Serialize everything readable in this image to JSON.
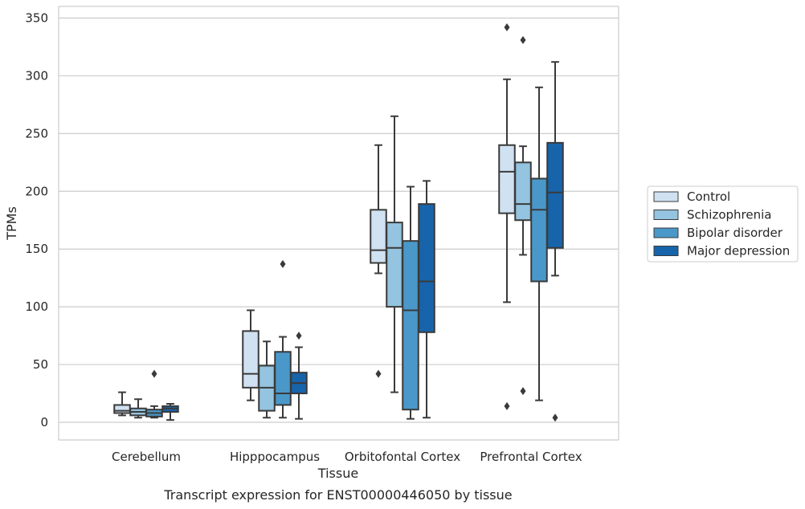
{
  "caption": "Transcript expression for ENST00000446050 by tissue",
  "chart_data": {
    "type": "box",
    "title": "",
    "xlabel": "Tissue",
    "ylabel": "TPMs",
    "ylim": [
      -15,
      360
    ],
    "yticks": [
      0,
      50,
      100,
      150,
      200,
      250,
      300,
      350
    ],
    "grid": "horizontal",
    "legend_position": "right",
    "categories": [
      "Cerebellum",
      "Hipppocampus",
      "Orbitofontal Cortex",
      "Prefrontal Cortex"
    ],
    "series": [
      {
        "name": "Control",
        "color": "#d0e1f2",
        "boxes": [
          {
            "whislo": 6,
            "q1": 8,
            "med": 10,
            "q3": 15,
            "whishi": 26,
            "fliers": []
          },
          {
            "whislo": 19,
            "q1": 30,
            "med": 42,
            "q3": 79,
            "whishi": 97,
            "fliers": []
          },
          {
            "whislo": 129,
            "q1": 138,
            "med": 149,
            "q3": 184,
            "whishi": 240,
            "fliers": [
              42
            ]
          },
          {
            "whislo": 104,
            "q1": 181,
            "med": 217,
            "q3": 240,
            "whishi": 297,
            "fliers": [
              342,
              14
            ]
          }
        ]
      },
      {
        "name": "Schizophrenia",
        "color": "#94c4df",
        "boxes": [
          {
            "whislo": 4,
            "q1": 6,
            "med": 9,
            "q3": 12,
            "whishi": 20,
            "fliers": []
          },
          {
            "whislo": 4,
            "q1": 10,
            "med": 30,
            "q3": 49,
            "whishi": 70,
            "fliers": []
          },
          {
            "whislo": 26,
            "q1": 100,
            "med": 151,
            "q3": 173,
            "whishi": 265,
            "fliers": []
          },
          {
            "whislo": 145,
            "q1": 175,
            "med": 189,
            "q3": 225,
            "whishi": 239,
            "fliers": [
              331,
              27
            ]
          }
        ]
      },
      {
        "name": "Bipolar disorder",
        "color": "#4a98c9",
        "boxes": [
          {
            "whislo": 4,
            "q1": 5,
            "med": 8,
            "q3": 11,
            "whishi": 14,
            "fliers": [
              42
            ]
          },
          {
            "whislo": 4,
            "q1": 15,
            "med": 25,
            "q3": 61,
            "whishi": 74,
            "fliers": [
              137
            ]
          },
          {
            "whislo": 3,
            "q1": 11,
            "med": 97,
            "q3": 157,
            "whishi": 204,
            "fliers": []
          },
          {
            "whislo": 19,
            "q1": 122,
            "med": 184,
            "q3": 211,
            "whishi": 290,
            "fliers": []
          }
        ]
      },
      {
        "name": "Major depression",
        "color": "#1764ab",
        "boxes": [
          {
            "whislo": 2,
            "q1": 9,
            "med": 12,
            "q3": 14,
            "whishi": 16,
            "fliers": []
          },
          {
            "whislo": 3,
            "q1": 25,
            "med": 34,
            "q3": 43,
            "whishi": 65,
            "fliers": [
              75
            ]
          },
          {
            "whislo": 4,
            "q1": 78,
            "med": 122,
            "q3": 189,
            "whishi": 209,
            "fliers": []
          },
          {
            "whislo": 127,
            "q1": 151,
            "med": 199,
            "q3": 242,
            "whishi": 312,
            "fliers": [
              4
            ]
          }
        ]
      }
    ]
  }
}
